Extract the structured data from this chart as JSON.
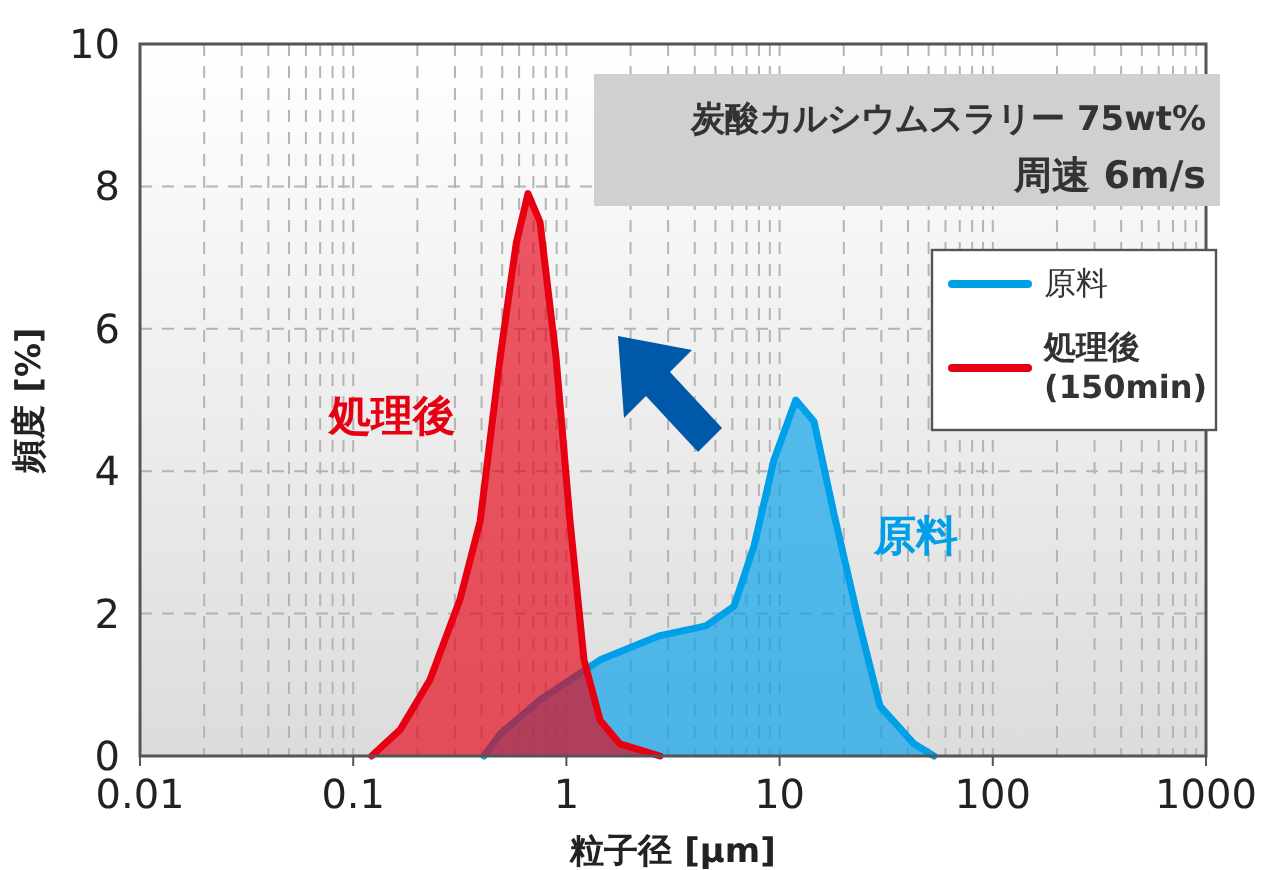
{
  "chart_data": {
    "type": "area",
    "title": "炭酸カルシウムスラリー 75wt%",
    "subtitle": "周速 6m/s",
    "xlabel": "粒子径 [μm]",
    "ylabel": "頻度 [%]",
    "log": "x",
    "xlim": [
      0.01,
      1000
    ],
    "xticks": [
      0.01,
      0.1,
      1,
      10,
      100,
      1000
    ],
    "ylim": [
      0,
      10
    ],
    "yticks": [
      0,
      2,
      4,
      6,
      8,
      10
    ],
    "grid": true,
    "legend": "top right",
    "series": [
      {
        "name": "原料",
        "color": "#00a0e9",
        "x": [
          0.411,
          0.489,
          0.752,
          1.44,
          2.75,
          4.52,
          6.11,
          7.59,
          9.42,
          11.9,
          14.5,
          18.0,
          23.8,
          29.6,
          42.7,
          53
        ],
        "values": [
          0,
          0.31,
          0.79,
          1.35,
          1.69,
          1.83,
          2.1,
          2.95,
          4.16,
          5.0,
          4.7,
          3.4,
          1.83,
          0.7,
          0.17,
          0
        ]
      },
      {
        "name": "処理後 (150min)",
        "color": "#e60012",
        "x": [
          0.122,
          0.166,
          0.229,
          0.317,
          0.394,
          0.489,
          0.581,
          0.661,
          0.752,
          0.893,
          1.04,
          1.21,
          1.44,
          1.78,
          2.75
        ],
        "values": [
          0,
          0.37,
          1.07,
          2.2,
          3.3,
          5.6,
          7.2,
          7.9,
          7.5,
          5.6,
          3.3,
          1.35,
          0.5,
          0.17,
          0
        ]
      }
    ],
    "annotations": [
      "処理後",
      "原料"
    ]
  }
}
